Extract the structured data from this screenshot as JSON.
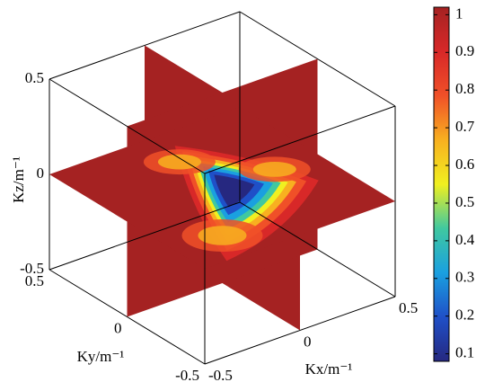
{
  "chart_data": {
    "type": "slice3d",
    "xlabel": "Kx/m⁻¹",
    "ylabel": "Ky/m⁻¹",
    "zlabel": "Kz/m⁻¹",
    "xlim": [
      -0.5,
      0.5
    ],
    "ylim": [
      -0.5,
      0.5
    ],
    "zlim": [
      -0.5,
      0.5
    ],
    "xticks": [
      -0.5,
      0,
      0.5
    ],
    "yticks": [
      -0.5,
      0,
      0.5
    ],
    "zticks": [
      -0.5,
      0,
      0.5
    ],
    "colorbar": {
      "clim": [
        0.08,
        1.02
      ],
      "ticks": [
        0.1,
        0.2,
        0.3,
        0.4,
        0.5,
        0.6,
        0.7,
        0.8,
        0.9,
        1
      ]
    },
    "colormap": [
      "#262880",
      "#1f50c8",
      "#1aa0e0",
      "#40c8a0",
      "#f0f020",
      "#f8b020",
      "#f05028",
      "#d82828",
      "#a52222"
    ]
  }
}
